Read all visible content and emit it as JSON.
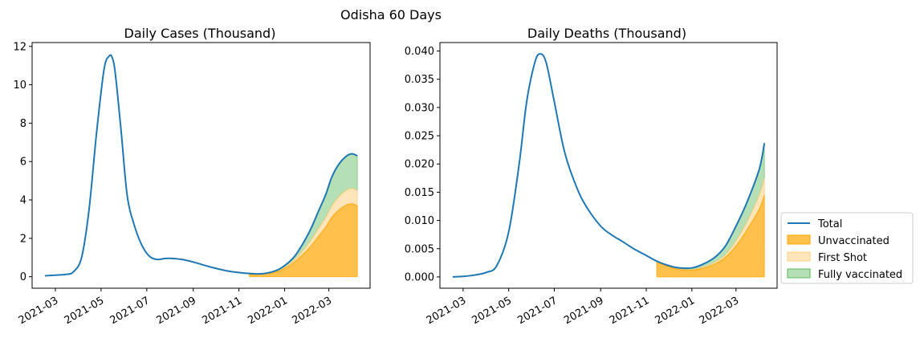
{
  "suptitle": "Odisha 60 Days",
  "colors": {
    "total": "#1f77b4",
    "unvaccinated": "#ffa500",
    "first_shot": "#ffd080",
    "fully_vaccinated": "#5cb85c"
  },
  "legend": {
    "placement": "right",
    "labels": [
      "Total",
      "Unvaccinated",
      "First Shot",
      "Fully vaccinated"
    ]
  },
  "chart_data": [
    {
      "type": "area",
      "title": "Daily Cases (Thousand)",
      "xlabel": "",
      "ylabel": "",
      "xlim": [
        "2021-01-29",
        "2022-04-25"
      ],
      "ylim": [
        -0.6,
        12.2
      ],
      "yticks": [
        0,
        2,
        4,
        6,
        8,
        10,
        12
      ],
      "ytick_labels": [
        "0",
        "2",
        "4",
        "6",
        "8",
        "10",
        "12"
      ],
      "xticks": [
        "2021-03-01",
        "2021-05-01",
        "2021-07-01",
        "2021-09-01",
        "2021-11-01",
        "2022-01-01",
        "2022-03-01"
      ],
      "xtick_labels": [
        "2021-03",
        "2021-05",
        "2021-07",
        "2021-09",
        "2021-11",
        "2022-01",
        "2022-03"
      ],
      "series": [
        {
          "name": "Total",
          "x": [
            "2021-02-15",
            "2021-03-01",
            "2021-03-15",
            "2021-03-25",
            "2021-04-05",
            "2021-04-15",
            "2021-04-25",
            "2021-05-05",
            "2021-05-12",
            "2021-05-16",
            "2021-05-20",
            "2021-05-28",
            "2021-06-05",
            "2021-06-15",
            "2021-06-25",
            "2021-07-05",
            "2021-07-15",
            "2021-07-25",
            "2021-08-05",
            "2021-08-20",
            "2021-09-05",
            "2021-09-20",
            "2021-10-05",
            "2021-10-20",
            "2021-11-05",
            "2021-11-15",
            "2021-11-25",
            "2021-12-05",
            "2021-12-15",
            "2021-12-25",
            "2022-01-05",
            "2022-01-15",
            "2022-01-25",
            "2022-02-05",
            "2022-02-15",
            "2022-02-25",
            "2022-03-05",
            "2022-03-15",
            "2022-03-25",
            "2022-04-01",
            "2022-04-08"
          ],
          "y": [
            0.05,
            0.08,
            0.12,
            0.25,
            1.0,
            3.5,
            7.5,
            10.8,
            11.5,
            11.4,
            10.6,
            7.5,
            4.2,
            2.6,
            1.6,
            1.05,
            0.9,
            0.95,
            0.95,
            0.88,
            0.72,
            0.55,
            0.4,
            0.28,
            0.2,
            0.17,
            0.15,
            0.17,
            0.25,
            0.4,
            0.7,
            1.1,
            1.7,
            2.5,
            3.4,
            4.3,
            5.2,
            5.9,
            6.3,
            6.4,
            6.3
          ]
        }
      ],
      "stack": {
        "x": [
          "2021-11-15",
          "2021-11-25",
          "2021-12-05",
          "2021-12-15",
          "2021-12-25",
          "2022-01-05",
          "2022-01-15",
          "2022-01-25",
          "2022-02-05",
          "2022-02-15",
          "2022-02-25",
          "2022-03-05",
          "2022-03-15",
          "2022-03-25",
          "2022-04-01",
          "2022-04-08"
        ],
        "unvaccinated": [
          0.12,
          0.12,
          0.14,
          0.2,
          0.3,
          0.52,
          0.8,
          1.15,
          1.6,
          2.1,
          2.6,
          3.1,
          3.5,
          3.75,
          3.8,
          3.7
        ],
        "first_shot": [
          0.03,
          0.02,
          0.02,
          0.03,
          0.05,
          0.08,
          0.13,
          0.2,
          0.3,
          0.4,
          0.5,
          0.6,
          0.7,
          0.78,
          0.8,
          0.8
        ],
        "fully_vaccinated": [
          0.02,
          0.01,
          0.01,
          0.02,
          0.05,
          0.1,
          0.17,
          0.35,
          0.6,
          0.9,
          1.2,
          1.5,
          1.7,
          1.77,
          1.8,
          1.8
        ]
      }
    },
    {
      "type": "area",
      "title": "Daily Deaths (Thousand)",
      "xlabel": "",
      "ylabel": "",
      "xlim": [
        "2021-01-29",
        "2022-04-25"
      ],
      "ylim": [
        -0.002,
        0.0415
      ],
      "yticks": [
        0,
        0.005,
        0.01,
        0.015,
        0.02,
        0.025,
        0.03,
        0.035,
        0.04
      ],
      "ytick_labels": [
        "0.000",
        "0.005",
        "0.010",
        "0.015",
        "0.020",
        "0.025",
        "0.030",
        "0.035",
        "0.040"
      ],
      "xticks": [
        "2021-03-01",
        "2021-05-01",
        "2021-07-01",
        "2021-09-01",
        "2021-11-01",
        "2022-01-01",
        "2022-03-01"
      ],
      "xtick_labels": [
        "2021-03",
        "2021-05",
        "2021-07",
        "2021-09",
        "2021-11",
        "2022-01",
        "2022-03"
      ],
      "series": [
        {
          "name": "Total",
          "x": [
            "2021-02-15",
            "2021-03-01",
            "2021-03-15",
            "2021-04-01",
            "2021-04-15",
            "2021-05-01",
            "2021-05-15",
            "2021-05-25",
            "2021-06-05",
            "2021-06-12",
            "2021-06-20",
            "2021-07-01",
            "2021-07-15",
            "2021-08-01",
            "2021-08-15",
            "2021-09-01",
            "2021-09-15",
            "2021-10-01",
            "2021-10-15",
            "2021-11-01",
            "2021-11-15",
            "2021-12-01",
            "2021-12-15",
            "2022-01-01",
            "2022-01-15",
            "2022-02-01",
            "2022-02-15",
            "2022-03-01",
            "2022-03-15",
            "2022-04-01",
            "2022-04-08"
          ],
          "y": [
            0.0,
            0.0001,
            0.0003,
            0.0008,
            0.002,
            0.008,
            0.02,
            0.031,
            0.038,
            0.0395,
            0.038,
            0.031,
            0.022,
            0.0155,
            0.012,
            0.009,
            0.0075,
            0.0062,
            0.005,
            0.0038,
            0.0028,
            0.002,
            0.0016,
            0.0016,
            0.0022,
            0.0035,
            0.0055,
            0.009,
            0.013,
            0.019,
            0.0237
          ]
        }
      ],
      "stack": {
        "x": [
          "2021-11-15",
          "2021-12-01",
          "2021-12-15",
          "2022-01-01",
          "2022-01-15",
          "2022-02-01",
          "2022-02-15",
          "2022-03-01",
          "2022-03-15",
          "2022-04-01",
          "2022-04-08"
        ],
        "unvaccinated": [
          0.0027,
          0.0018,
          0.0013,
          0.0012,
          0.0015,
          0.0023,
          0.0035,
          0.0055,
          0.0082,
          0.012,
          0.0145
        ],
        "first_shot": [
          0.0001,
          0.0001,
          0.0001,
          0.0001,
          0.0002,
          0.0003,
          0.0005,
          0.0009,
          0.0014,
          0.0025,
          0.003
        ],
        "fully_vaccinated": [
          0.0,
          0.0001,
          0.0002,
          0.0003,
          0.0005,
          0.0009,
          0.0015,
          0.0026,
          0.0034,
          0.0045,
          0.0062
        ]
      }
    }
  ]
}
